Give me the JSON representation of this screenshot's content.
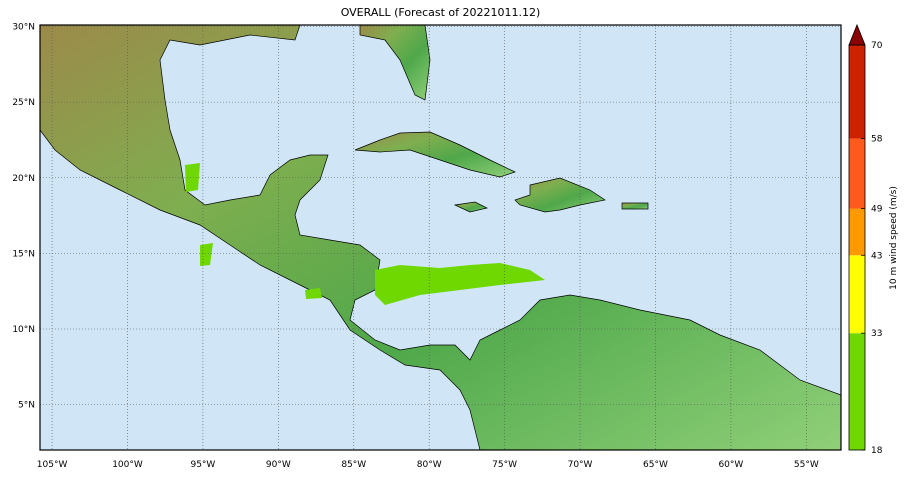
{
  "title": "OVERALL (Forecast of 20221011.12)",
  "map": {
    "x_ticks": [
      "105°W",
      "100°W",
      "95°W",
      "90°W",
      "85°W",
      "80°W",
      "75°W",
      "70°W",
      "65°W",
      "60°W",
      "55°W"
    ],
    "x_tick_lons": [
      -105,
      -100,
      -95,
      -90,
      -85,
      -80,
      -75,
      -70,
      -65,
      -60,
      -55
    ],
    "y_ticks": [
      "30°N",
      "25°N",
      "20°N",
      "15°N",
      "10°N",
      "5°N"
    ],
    "y_tick_lats": [
      30,
      25,
      20,
      15,
      10,
      5
    ],
    "extent": {
      "lon": [
        -105.8,
        -52.7
      ],
      "lat": [
        2.0,
        30.1
      ]
    },
    "ocean_color": "#d0e6f6",
    "gridlines": true
  },
  "colorbar": {
    "label": "10 m wind speed (m/s)",
    "ticks": [
      "18",
      "33",
      "43",
      "49",
      "58",
      "70"
    ],
    "bins": [
      {
        "from": 18,
        "to": 33,
        "color": "#6ed800"
      },
      {
        "from": 33,
        "to": 43,
        "color": "#ffff00"
      },
      {
        "from": 43,
        "to": 49,
        "color": "#ff9900"
      },
      {
        "from": 49,
        "to": 58,
        "color": "#ff5a1e"
      },
      {
        "from": 58,
        "to": 70,
        "color": "#cc2200"
      }
    ],
    "extend_color": "#8b0000"
  }
}
